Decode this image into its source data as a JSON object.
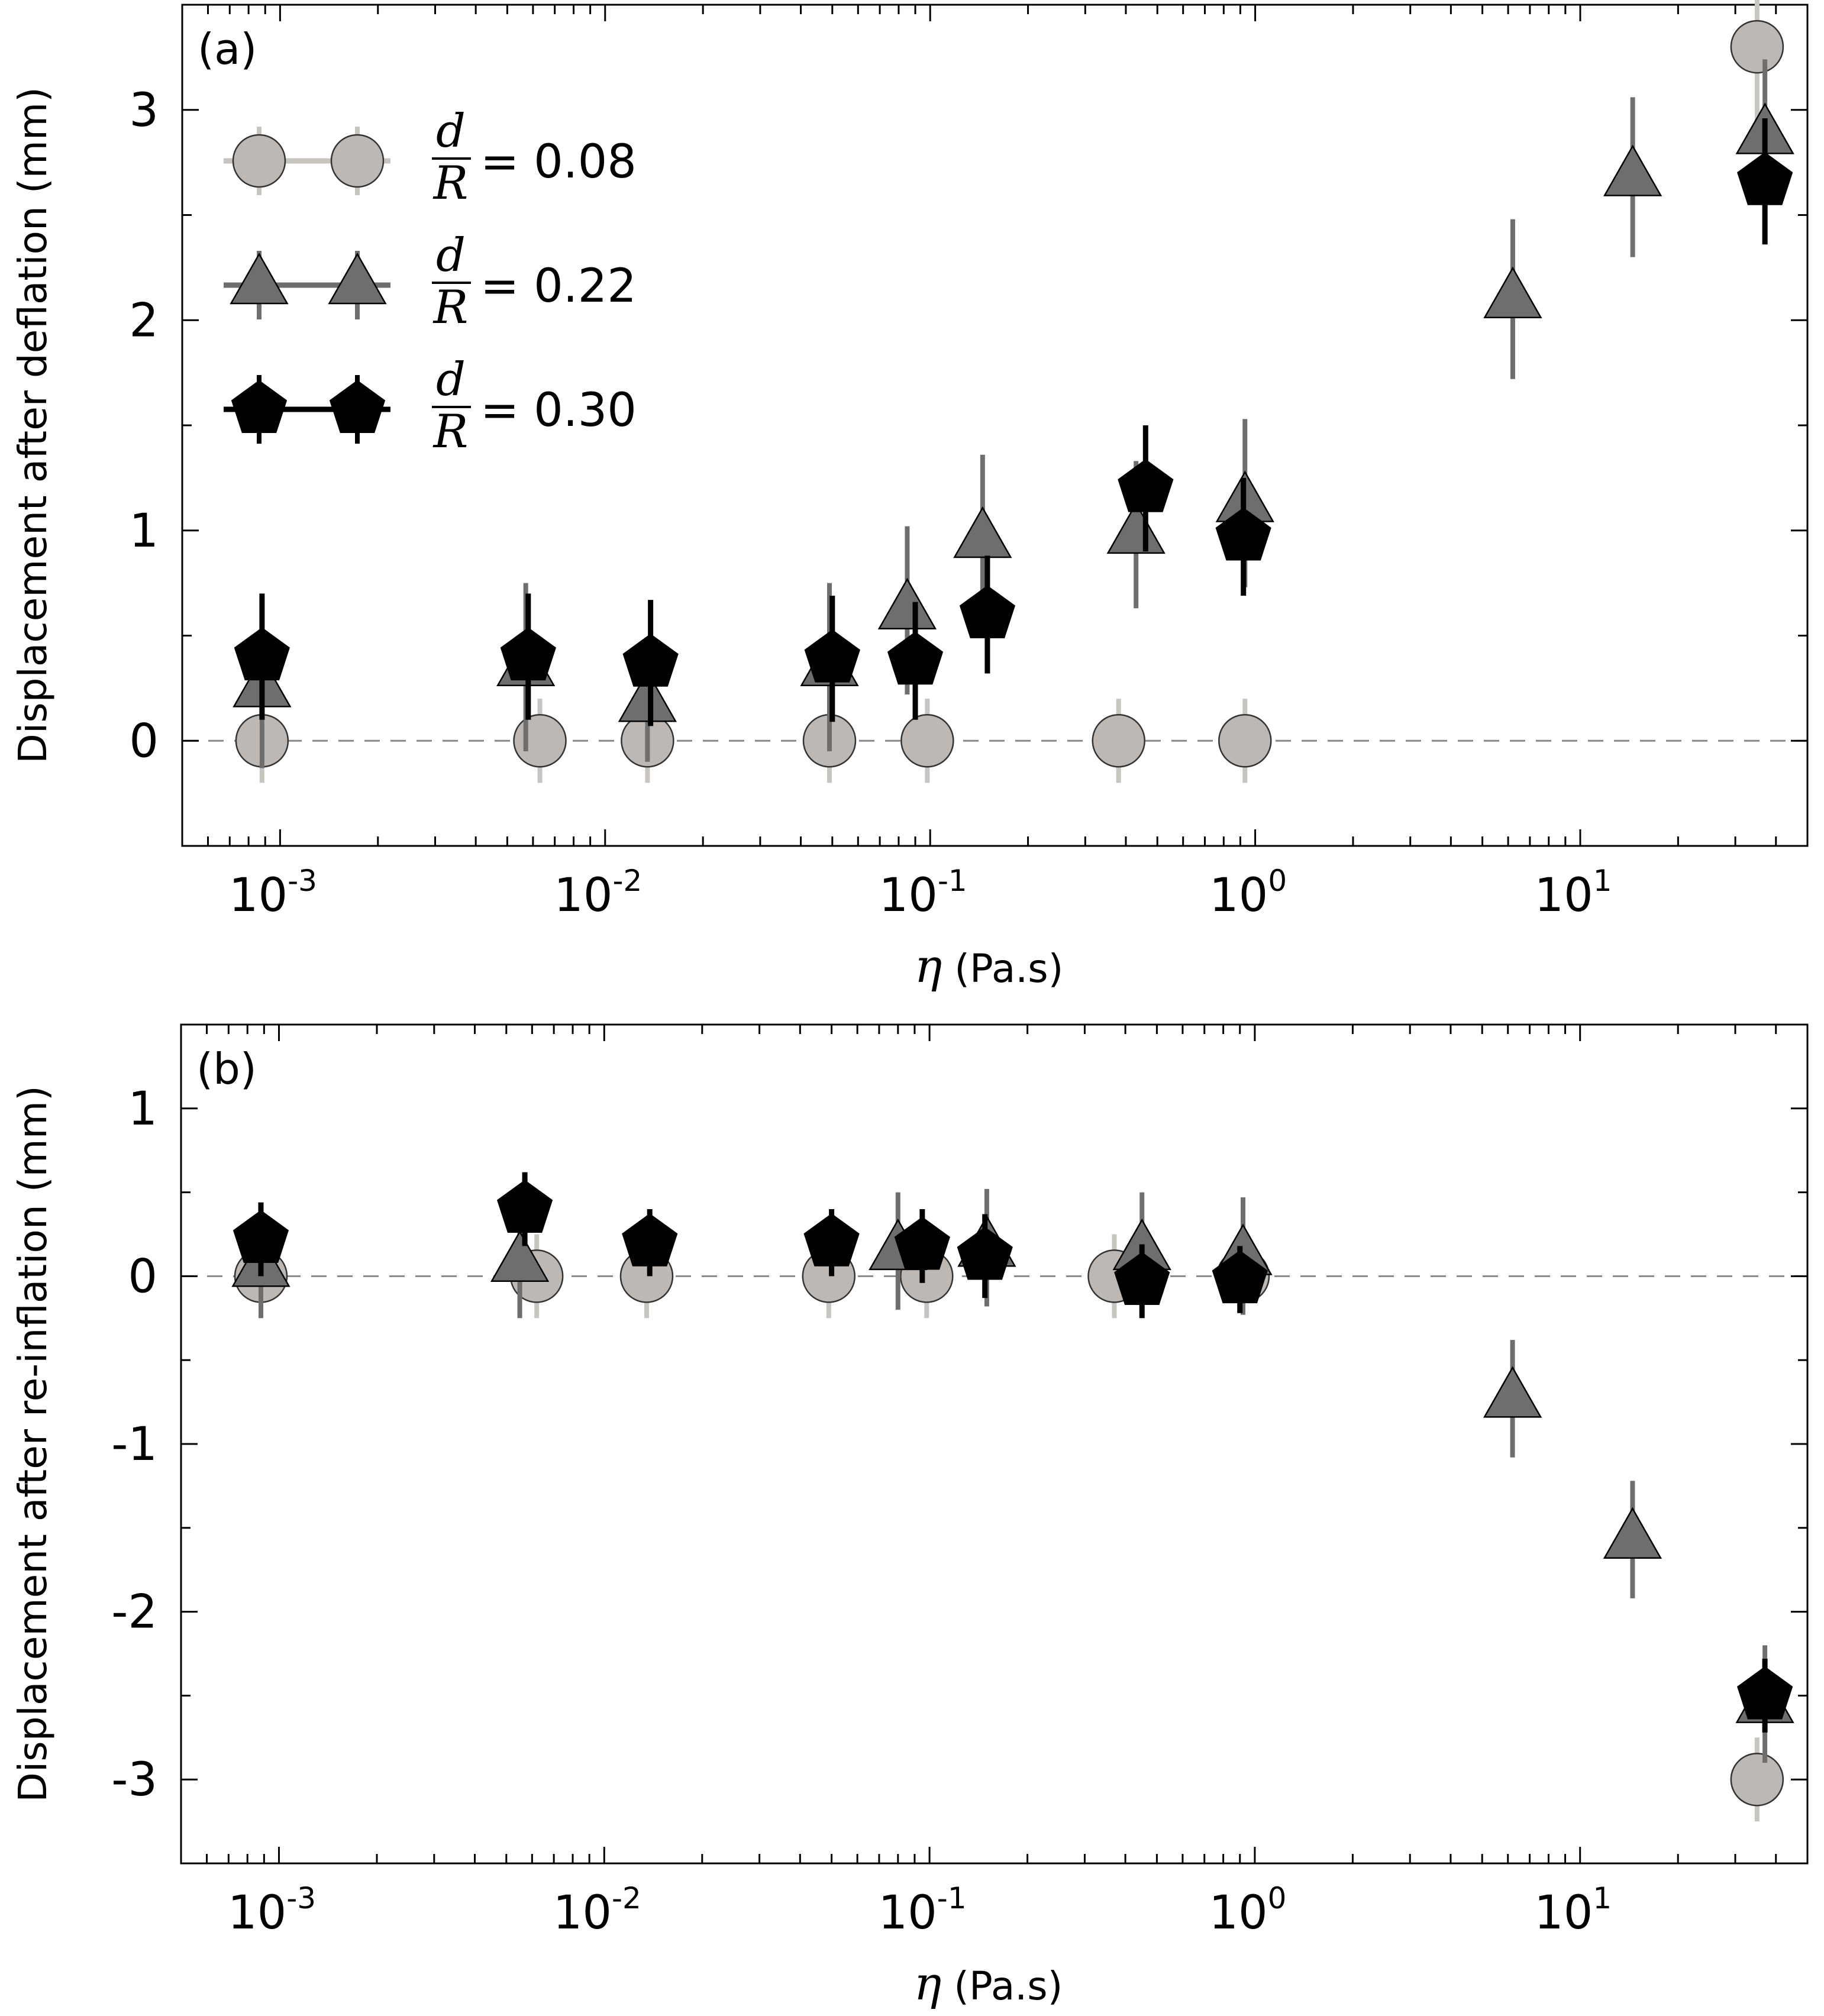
{
  "colors": {
    "light": "#bdb8b3",
    "light_err": "#c8c4bf",
    "mid": "#6e6e6e",
    "mid_err": "#6e6e6e",
    "dark": "#000000",
    "dark_err": "#000000",
    "zero_line": "#888888"
  },
  "legend": [
    {
      "label": "= 0.08",
      "frac_num": "d",
      "frac_den": "R",
      "marker": "circle",
      "series": "d/R=0.08"
    },
    {
      "label": "= 0.22",
      "frac_num": "d",
      "frac_den": "R",
      "marker": "triangle",
      "series": "d/R=0.22"
    },
    {
      "label": "= 0.30",
      "frac_num": "d",
      "frac_den": "R",
      "marker": "pentagon",
      "series": "d/R=0.30"
    }
  ],
  "chart_data": [
    {
      "type": "scatter",
      "panel_label": "(a)",
      "xlabel_symbol": "η",
      "xlabel_unit": "(Pa.s)",
      "ylabel": "Displacement after deflation (mm)",
      "xscale": "log",
      "xlim": [
        0.0005,
        50
      ],
      "ylim": [
        -0.5,
        3.5
      ],
      "x_ticks": [
        {
          "base": "10",
          "exp": "-3",
          "value": 0.001
        },
        {
          "base": "10",
          "exp": "-2",
          "value": 0.01
        },
        {
          "base": "10",
          "exp": "-1",
          "value": 0.1
        },
        {
          "base": "10",
          "exp": "0",
          "value": 1
        },
        {
          "base": "10",
          "exp": "1",
          "value": 10
        }
      ],
      "y_ticks": [
        {
          "label": "0",
          "value": 0
        },
        {
          "label": "1",
          "value": 1
        },
        {
          "label": "2",
          "value": 2
        },
        {
          "label": "3",
          "value": 3
        }
      ],
      "legend_position": "top-left",
      "series": [
        {
          "name": "d/R=0.08",
          "marker": "circle",
          "x": [
            0.00088,
            0.0063,
            0.0135,
            0.049,
            0.098,
            0.38,
            0.93,
            35
          ],
          "y": [
            0.0,
            0.0,
            0.0,
            0.0,
            0.0,
            0.0,
            0.0,
            3.3
          ],
          "err": [
            0.2,
            0.2,
            0.2,
            0.2,
            0.2,
            0.2,
            0.2,
            0.35
          ]
        },
        {
          "name": "d/R=0.22",
          "marker": "triangle",
          "x": [
            0.00088,
            0.0057,
            0.0135,
            0.049,
            0.085,
            0.145,
            0.43,
            0.93,
            6.2,
            14.5,
            37
          ],
          "y": [
            0.25,
            0.35,
            0.18,
            0.35,
            0.62,
            0.96,
            0.98,
            1.13,
            2.1,
            2.68,
            2.88
          ],
          "err": [
            0.38,
            0.4,
            0.28,
            0.4,
            0.4,
            0.4,
            0.35,
            0.4,
            0.38,
            0.38,
            0.36
          ]
        },
        {
          "name": "d/R=0.30",
          "marker": "pentagon",
          "x": [
            0.00088,
            0.0058,
            0.0138,
            0.05,
            0.09,
            0.15,
            0.46,
            0.92,
            37
          ],
          "y": [
            0.4,
            0.4,
            0.37,
            0.39,
            0.38,
            0.6,
            1.2,
            0.97,
            2.66
          ],
          "err": [
            0.3,
            0.3,
            0.3,
            0.3,
            0.28,
            0.28,
            0.3,
            0.28,
            0.3
          ]
        }
      ]
    },
    {
      "type": "scatter",
      "panel_label": "(b)",
      "xlabel_symbol": "η",
      "xlabel_unit": "(Pa.s)",
      "ylabel": "Displacement after re-inflation (mm)",
      "xscale": "log",
      "xlim": [
        0.0005,
        50
      ],
      "ylim": [
        -3.5,
        1.5
      ],
      "x_ticks": [
        {
          "base": "10",
          "exp": "-3",
          "value": 0.001
        },
        {
          "base": "10",
          "exp": "-2",
          "value": 0.01
        },
        {
          "base": "10",
          "exp": "-1",
          "value": 0.1
        },
        {
          "base": "10",
          "exp": "0",
          "value": 1
        },
        {
          "base": "10",
          "exp": "1",
          "value": 10
        }
      ],
      "y_ticks": [
        {
          "label": "1",
          "value": 1
        },
        {
          "label": "0",
          "value": 0
        },
        {
          "label": "-1",
          "value": -1
        },
        {
          "label": "-2",
          "value": -2
        },
        {
          "label": "-3",
          "value": -3
        }
      ],
      "series": [
        {
          "name": "d/R=0.08",
          "marker": "circle",
          "x": [
            0.00088,
            0.0062,
            0.0135,
            0.049,
            0.098,
            0.37,
            0.92,
            35
          ],
          "y": [
            0.0,
            0.0,
            0.0,
            0.0,
            0.0,
            0.0,
            0.0,
            -3.0
          ],
          "err": [
            0.25,
            0.25,
            0.25,
            0.25,
            0.25,
            0.25,
            0.22,
            0.25
          ]
        },
        {
          "name": "d/R=0.22",
          "marker": "triangle",
          "x": [
            0.00088,
            0.0055,
            0.08,
            0.15,
            0.45,
            0.92,
            6.2,
            14.5,
            37
          ],
          "y": [
            0.05,
            0.08,
            0.15,
            0.17,
            0.15,
            0.12,
            -0.73,
            -1.57,
            -2.55
          ],
          "err": [
            0.3,
            0.33,
            0.35,
            0.35,
            0.35,
            0.35,
            0.35,
            0.35,
            0.35
          ]
        },
        {
          "name": "d/R=0.30",
          "marker": "pentagon",
          "x": [
            0.00088,
            0.0057,
            0.0138,
            0.05,
            0.095,
            0.148,
            0.45,
            0.9,
            37
          ],
          "y": [
            0.22,
            0.4,
            0.2,
            0.2,
            0.18,
            0.12,
            -0.03,
            -0.02,
            -2.5
          ],
          "err": [
            0.22,
            0.22,
            0.2,
            0.2,
            0.22,
            0.25,
            0.22,
            0.2,
            0.22
          ]
        }
      ]
    }
  ]
}
